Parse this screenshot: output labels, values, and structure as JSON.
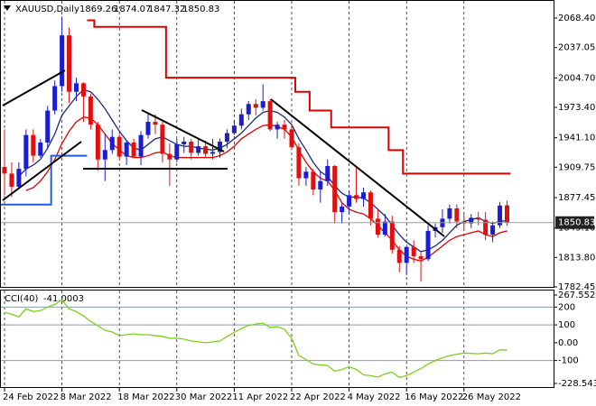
{
  "chart_data": [
    {
      "type": "candlestick",
      "title": "XAUUSD,Daily",
      "categories": [
        "24 Feb 2022",
        null,
        null,
        null,
        null,
        null,
        null,
        null,
        "8 Mar 2022",
        null,
        null,
        null,
        null,
        null,
        null,
        null,
        "18 Mar 2022",
        null,
        null,
        null,
        null,
        null,
        null,
        null,
        "30 Mar 2022",
        null,
        null,
        null,
        null,
        null,
        null,
        null,
        "11 Apr 2022",
        null,
        null,
        null,
        null,
        null,
        null,
        null,
        "22 Apr 2022",
        null,
        null,
        null,
        null,
        null,
        null,
        null,
        "4 May 2022",
        null,
        null,
        null,
        null,
        null,
        null,
        null,
        "16 May 2022",
        null,
        null,
        null,
        null,
        null,
        null,
        null,
        "26 May 2022",
        null,
        null,
        null,
        null,
        null,
        null
      ],
      "open": [
        1910,
        1903,
        1889,
        1908,
        1944,
        1922,
        1936,
        1970,
        1996,
        2050,
        1990,
        1999,
        1985,
        1955,
        1918,
        1928,
        1942,
        1921,
        1936,
        1921,
        1944,
        1958,
        1955,
        1924,
        1918,
        1934,
        1937,
        1925,
        1932,
        1924,
        1926,
        1937,
        1946,
        1954,
        1966,
        1977,
        1973,
        1980,
        1950,
        1955,
        1950,
        1931,
        1898,
        1905,
        1886,
        1895,
        1911,
        1862,
        1868,
        1880,
        1876,
        1883,
        1855,
        1838,
        1852,
        1822,
        1808,
        1825,
        1815,
        1812,
        1842,
        1846,
        1855,
        1866,
        1852,
        1850,
        1856,
        1854,
        1838,
        1848,
        1869.26
      ],
      "high": [
        1950,
        1915,
        1915,
        1950,
        1950,
        1940,
        1975,
        2002,
        2070,
        2058,
        2005,
        2000,
        1988,
        1958,
        1945,
        1950,
        1945,
        1938,
        1940,
        1948,
        1967,
        1966,
        1958,
        1935,
        1940,
        1942,
        1940,
        1940,
        1938,
        1940,
        1940,
        1950,
        1960,
        1972,
        1980,
        1982,
        1998,
        1982,
        1958,
        1960,
        1955,
        1935,
        1910,
        1908,
        1905,
        1918,
        1912,
        1872,
        1885,
        1909,
        1888,
        1885,
        1865,
        1860,
        1858,
        1826,
        1825,
        1832,
        1820,
        1848,
        1850,
        1865,
        1870,
        1870,
        1860,
        1860,
        1862,
        1862,
        1852,
        1873,
        1874.07
      ],
      "low": [
        1880,
        1878,
        1887,
        1900,
        1915,
        1920,
        1930,
        1966,
        1990,
        1978,
        1980,
        1958,
        1950,
        1906,
        1895,
        1924,
        1918,
        1912,
        1920,
        1912,
        1940,
        1945,
        1915,
        1890,
        1915,
        1925,
        1918,
        1922,
        1920,
        1918,
        1920,
        1930,
        1944,
        1950,
        1960,
        1965,
        1970,
        1948,
        1940,
        1940,
        1928,
        1890,
        1890,
        1880,
        1872,
        1890,
        1850,
        1850,
        1860,
        1872,
        1868,
        1848,
        1835,
        1836,
        1818,
        1798,
        1795,
        1808,
        1788,
        1810,
        1835,
        1840,
        1850,
        1845,
        1842,
        1845,
        1848,
        1832,
        1830,
        1845,
        1847.32
      ],
      "close": [
        1903,
        1889,
        1908,
        1944,
        1922,
        1936,
        1970,
        1996,
        2050,
        1990,
        1999,
        1985,
        1955,
        1918,
        1928,
        1942,
        1921,
        1936,
        1921,
        1944,
        1958,
        1955,
        1924,
        1918,
        1934,
        1937,
        1925,
        1932,
        1924,
        1926,
        1937,
        1946,
        1954,
        1966,
        1977,
        1973,
        1980,
        1950,
        1955,
        1950,
        1931,
        1898,
        1905,
        1886,
        1895,
        1911,
        1862,
        1868,
        1880,
        1876,
        1883,
        1855,
        1838,
        1852,
        1822,
        1808,
        1825,
        1815,
        1812,
        1842,
        1846,
        1855,
        1866,
        1852,
        1850,
        1856,
        1854,
        1838,
        1848,
        1869,
        1850.83
      ],
      "up_color": "#1c1cd0",
      "down_color": "#e01010",
      "series": [
        {
          "style": "line",
          "color": "#1a2a80",
          "values": [
            null,
            null,
            1900,
            1908,
            1912,
            1918,
            1930,
            1945,
            1965,
            1975,
            1985,
            1992,
            1990,
            1982,
            1972,
            1960,
            1948,
            1938,
            1930,
            1928,
            1934,
            1940,
            1942,
            1938,
            1934,
            1932,
            1932,
            1930,
            1929,
            1928,
            1930,
            1934,
            1940,
            1946,
            1954,
            1962,
            1968,
            1970,
            1968,
            1963,
            1955,
            1940,
            1928,
            1915,
            1905,
            1900,
            1890,
            1882,
            1878,
            1878,
            1877,
            1872,
            1865,
            1858,
            1848,
            1838,
            1830,
            1825,
            1820,
            1822,
            1826,
            1832,
            1840,
            1848,
            1852,
            1854,
            1856,
            1852,
            1850,
            1852,
            1853
          ]
        },
        {
          "style": "line",
          "color": "#e00000",
          "values": [
            null,
            null,
            null,
            1885,
            1888,
            1895,
            1905,
            1918,
            1935,
            1948,
            1958,
            1963,
            1962,
            1955,
            1945,
            1935,
            1928,
            1922,
            1920,
            1920,
            1922,
            1925,
            1926,
            1922,
            1920,
            1920,
            1920,
            1920,
            1920,
            1920,
            1922,
            1926,
            1932,
            1940,
            1945,
            1950,
            1954,
            1955,
            1953,
            1950,
            1942,
            1928,
            1915,
            1905,
            1898,
            1895,
            1885,
            1872,
            1865,
            1862,
            1860,
            1855,
            1848,
            1840,
            1832,
            1822,
            1815,
            1812,
            1810,
            1814,
            1820,
            1826,
            1832,
            1836,
            1838,
            1840,
            1842,
            1838,
            1836,
            1840,
            1842
          ]
        },
        {
          "style": "step",
          "color": "#e00000",
          "values": [
            null,
            null,
            null,
            null,
            null,
            null,
            null,
            null,
            null,
            null,
            null,
            null,
            2066,
            2059,
            2059,
            2059,
            2059,
            2059,
            2059,
            2059,
            2059,
            2059,
            2059,
            2005,
            2005,
            2005,
            2005,
            2005,
            2005,
            2005,
            2005,
            2005,
            2005,
            2005,
            2005,
            2005,
            2005,
            2005,
            2005,
            2005,
            2005,
            1990,
            1990,
            1970,
            1970,
            1970,
            1952,
            1952,
            1952,
            1952,
            1952,
            1952,
            1952,
            1952,
            1928,
            1928,
            1903,
            1903,
            1903,
            1903,
            1903,
            1903,
            1903,
            1903,
            1903,
            1903,
            1903,
            1903,
            1903,
            1903,
            1903
          ]
        },
        {
          "style": "step",
          "color": "#1f5ce0",
          "values": [
            1870,
            1870,
            1870,
            1870,
            1870,
            1870,
            1870,
            1922,
            1922,
            1922,
            1922,
            1922,
            null,
            null,
            null,
            null,
            null,
            null,
            null,
            null,
            null,
            null,
            null,
            null,
            null,
            null,
            null,
            null,
            null,
            null,
            null,
            null,
            null,
            null,
            null,
            null,
            null,
            null,
            null,
            null,
            null,
            null,
            null,
            null,
            null,
            null,
            null,
            null,
            null,
            null,
            null,
            null,
            null,
            null,
            null,
            null,
            null,
            null,
            null,
            null,
            null,
            null,
            null,
            null,
            null,
            null,
            null,
            null,
            null,
            null,
            null
          ]
        }
      ],
      "ylim": [
        1782.45,
        2085.67
      ],
      "yticks": [
        {
          "value": 2068.4,
          "label": "2068.40"
        },
        2037.05,
        {
          "value": 2004.7,
          "label": "2004.70"
        },
        {
          "value": 1973.4,
          "label": "1973.40"
        },
        {
          "value": 1941.1,
          "label": "1941.10"
        },
        1909.75,
        1877.45,
        {
          "value": 1845.1,
          "label": "1845.10"
        },
        {
          "value": 1813.8,
          "label": "1813.80"
        },
        1782.45
      ],
      "grid": true
    },
    {
      "type": "line",
      "title": "CCI(40)",
      "series": [
        {
          "color": "#7cd11a",
          "values": [
            170,
            160,
            145,
            190,
            175,
            180,
            200,
            215,
            240,
            190,
            175,
            150,
            120,
            95,
            70,
            60,
            40,
            45,
            50,
            45,
            45,
            40,
            35,
            25,
            25,
            20,
            10,
            5,
            0,
            5,
            10,
            35,
            58,
            80,
            97,
            105,
            110,
            85,
            90,
            75,
            25,
            -72,
            -95,
            -120,
            -125,
            -128,
            -160,
            -150,
            -135,
            -150,
            -180,
            -185,
            -193,
            -175,
            -165,
            -195,
            -185,
            -165,
            -145,
            -120,
            -100,
            -85,
            -72,
            -65,
            -58,
            -60,
            -62,
            -58,
            -62,
            -40,
            -41.0003
          ]
        }
      ],
      "ylim": [
        -228.5432,
        267.5525
      ],
      "yticks": [
        267.5525,
        200,
        100,
        {
          "value": 0,
          "label": "0.00"
        },
        -100,
        -228.5432
      ]
    }
  ]
}
